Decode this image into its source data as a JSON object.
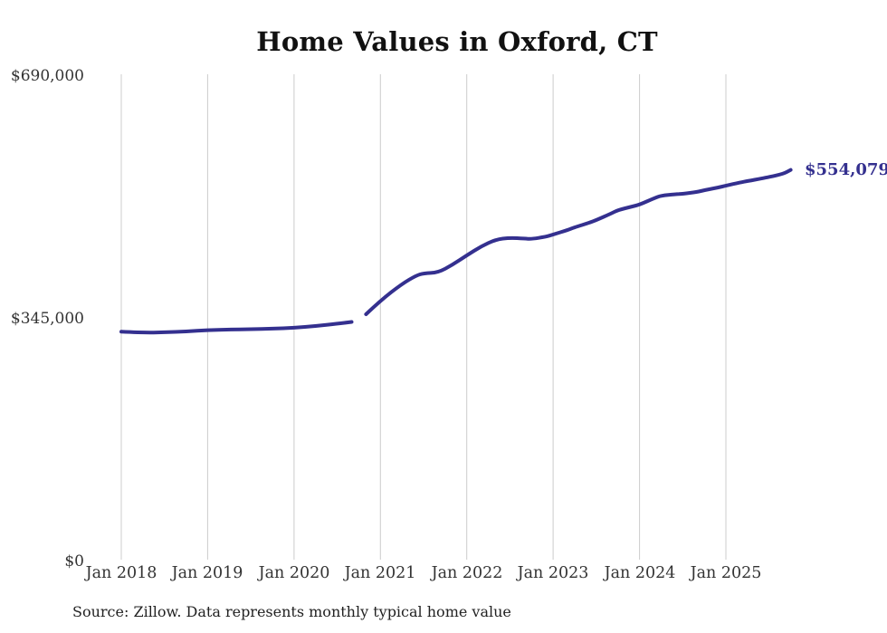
{
  "title": "Home Values in Oxford, CT",
  "source_note": "Source: Zillow. Data represents monthly typical home value",
  "end_value_label": "$554,079",
  "colors": {
    "background": "#ffffff",
    "line": "#34308f",
    "grid": "#cccccc",
    "title_text": "#111111",
    "tick_text": "#333333",
    "source_text": "#222222"
  },
  "chart_data": {
    "type": "line",
    "title": "Home Values in Oxford, CT",
    "xlabel": "",
    "ylabel": "",
    "ylim": [
      0,
      690000
    ],
    "grid": "vertical-only",
    "legend": "none",
    "y_ticks": [
      {
        "label": "$0",
        "value": 0
      },
      {
        "label": "$345,000",
        "value": 345000
      },
      {
        "label": "$690,000",
        "value": 690000
      }
    ],
    "x_ticks": [
      {
        "label": "Jan 2018",
        "m": 0
      },
      {
        "label": "Jan 2019",
        "m": 12
      },
      {
        "label": "Jan 2020",
        "m": 24
      },
      {
        "label": "Jan 2021",
        "m": 36
      },
      {
        "label": "Jan 2022",
        "m": 48
      },
      {
        "label": "Jan 2023",
        "m": 60
      },
      {
        "label": "Jan 2024",
        "m": 72
      },
      {
        "label": "Jan 2025",
        "m": 84
      }
    ],
    "x_unit": "months since Jan 2018, monthly typical home value (USD)",
    "series": [
      {
        "name": "Typical home value",
        "end_label": "$554,079",
        "end_value": 554079,
        "points": [
          [
            0,
            324000
          ],
          [
            3,
            322600
          ],
          [
            6,
            323200
          ],
          [
            9,
            324400
          ],
          [
            12,
            326400
          ],
          [
            15,
            327000
          ],
          [
            18,
            327600
          ],
          [
            21,
            328300
          ],
          [
            24,
            329500
          ],
          [
            27,
            332100
          ],
          [
            30,
            335400
          ],
          [
            32,
            337900
          ],
          null,
          [
            34,
            348900
          ],
          [
            36,
            368200
          ],
          [
            39,
            392000
          ],
          [
            41,
            404000
          ],
          [
            42,
            407000
          ],
          [
            44,
            408100
          ],
          [
            46,
            419000
          ],
          [
            48,
            432600
          ],
          [
            50,
            445400
          ],
          [
            52,
            455000
          ],
          [
            54,
            457600
          ],
          [
            56,
            456500
          ],
          [
            57,
            455700
          ],
          [
            59,
            459000
          ],
          [
            60,
            462100
          ],
          [
            62,
            468500
          ],
          [
            63,
            472400
          ],
          [
            65,
            478900
          ],
          [
            66,
            482700
          ],
          [
            68,
            491700
          ],
          [
            69,
            496900
          ],
          [
            71,
            502000
          ],
          [
            72,
            504600
          ],
          [
            74,
            513600
          ],
          [
            75,
            517500
          ],
          [
            77,
            519400
          ],
          [
            78,
            520100
          ],
          [
            80,
            522700
          ],
          [
            81,
            525200
          ],
          [
            83,
            529100
          ],
          [
            84,
            531700
          ],
          [
            86,
            536200
          ],
          [
            87,
            538100
          ],
          [
            89,
            542000
          ],
          [
            90,
            543900
          ],
          [
            92,
            548400
          ],
          [
            93,
            554079
          ]
        ]
      }
    ]
  }
}
